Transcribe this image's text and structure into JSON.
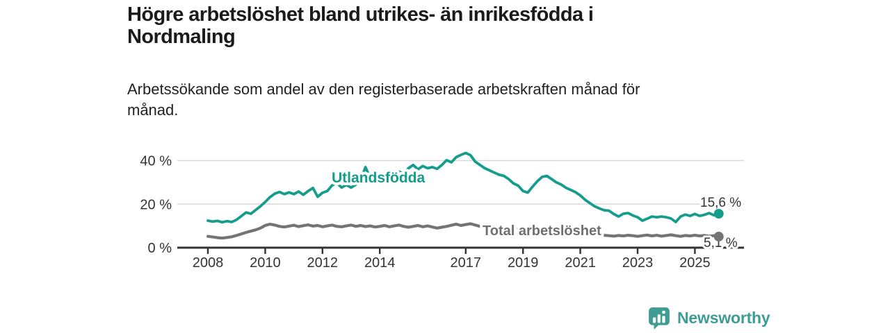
{
  "header": {
    "title": "Högre arbetslöshet bland utrikes- än inrikesfödda i Nordmaling",
    "title_lines": [
      "Högre arbetslöshet bland utrikes- än inrikesfödda i",
      "Nordmaling"
    ],
    "subtitle": "Arbetssökande som andel av den registerbaserade arbetskraften månad för månad.",
    "subtitle_lines": [
      "Arbetssökande som andel av den registerbaserade arbetskraften månad för",
      "månad."
    ]
  },
  "chart_data": {
    "type": "line",
    "x_unit": "year, monthly observations",
    "x_start": 2008.0,
    "x_step_years": 0.1667,
    "x_end": 2025.83,
    "xticks": [
      "2008",
      "2010",
      "2012",
      "2014",
      "2017",
      "2019",
      "2021",
      "2023",
      "2025"
    ],
    "yticks": [
      {
        "value": 0,
        "label": "0 %"
      },
      {
        "value": 20,
        "label": "20 %"
      },
      {
        "value": 40,
        "label": "40 %"
      }
    ],
    "ylim": [
      0,
      46
    ],
    "grid": "horizontal only",
    "legend": "inline labels on lines",
    "series": [
      {
        "name": "Utlandsfödda",
        "color": "#149c8c",
        "end_value": 15.6,
        "end_label": "15,6 %",
        "values": [
          12.4,
          12.0,
          12.3,
          11.7,
          12.2,
          11.8,
          12.8,
          14.5,
          16.2,
          15.6,
          17.3,
          19.0,
          21.0,
          23.2,
          24.8,
          25.6,
          24.6,
          25.4,
          24.6,
          25.8,
          24.3,
          26.0,
          27.4,
          23.4,
          25.2,
          26.0,
          28.6,
          29.8,
          27.6,
          28.8,
          27.6,
          29.0,
          31.0,
          37.0,
          32.0,
          33.5,
          33.0,
          32.0,
          34.0,
          33.0,
          35.0,
          34.0,
          36.5,
          38.0,
          36.0,
          37.5,
          36.5,
          37.0,
          36.2,
          38.0,
          40.2,
          39.2,
          41.6,
          42.6,
          43.5,
          42.5,
          39.5,
          38.0,
          36.5,
          35.5,
          34.5,
          33.5,
          33.0,
          31.5,
          29.5,
          28.5,
          26.0,
          25.3,
          28.0,
          30.5,
          32.5,
          33.0,
          31.5,
          30.0,
          29.0,
          27.5,
          26.5,
          25.5,
          24.0,
          22.0,
          20.5,
          19.0,
          18.0,
          17.2,
          17.0,
          15.5,
          14.3,
          15.6,
          15.9,
          14.8,
          14.0,
          12.4,
          13.3,
          14.3,
          14.0,
          14.3,
          14.0,
          13.4,
          11.8,
          14.3,
          15.2,
          14.6,
          15.5,
          14.6,
          15.1,
          15.9,
          14.9,
          15.6
        ]
      },
      {
        "name": "Total arbetslöshet",
        "color": "#747474",
        "end_value": 5.1,
        "end_label": "5,1 %",
        "values": [
          5.2,
          4.9,
          4.6,
          4.4,
          4.7,
          5.0,
          5.6,
          6.3,
          7.0,
          7.6,
          8.2,
          9.0,
          10.2,
          10.8,
          10.4,
          9.8,
          9.5,
          9.9,
          10.3,
          9.7,
          10.1,
          10.5,
          9.9,
          10.2,
          9.6,
          10.0,
          10.4,
          9.8,
          9.6,
          10.0,
          10.4,
          9.8,
          10.2,
          9.7,
          10.0,
          9.5,
          9.8,
          10.2,
          9.6,
          10.0,
          10.4,
          9.8,
          9.4,
          9.8,
          10.2,
          9.6,
          10.0,
          9.5,
          9.0,
          9.4,
          9.8,
          10.3,
          10.8,
          10.2,
          10.6,
          11.0,
          10.4,
          9.8,
          9.3,
          8.9,
          8.6,
          8.9,
          8.4,
          8.7,
          8.2,
          8.5,
          8.0,
          8.3,
          7.8,
          8.1,
          8.5,
          8.8,
          9.0,
          8.6,
          8.2,
          7.9,
          7.5,
          7.2,
          7.0,
          6.7,
          6.4,
          6.1,
          5.9,
          5.7,
          5.5,
          5.3,
          5.6,
          5.4,
          5.7,
          5.5,
          5.2,
          5.5,
          5.8,
          5.4,
          5.7,
          5.3,
          5.6,
          5.9,
          5.5,
          5.2,
          5.6,
          5.4,
          5.7,
          5.4,
          5.6,
          5.3,
          5.5,
          5.1
        ]
      }
    ]
  },
  "footer": {
    "brand": "Newsworthy",
    "brand_color": "#3f9c94"
  }
}
